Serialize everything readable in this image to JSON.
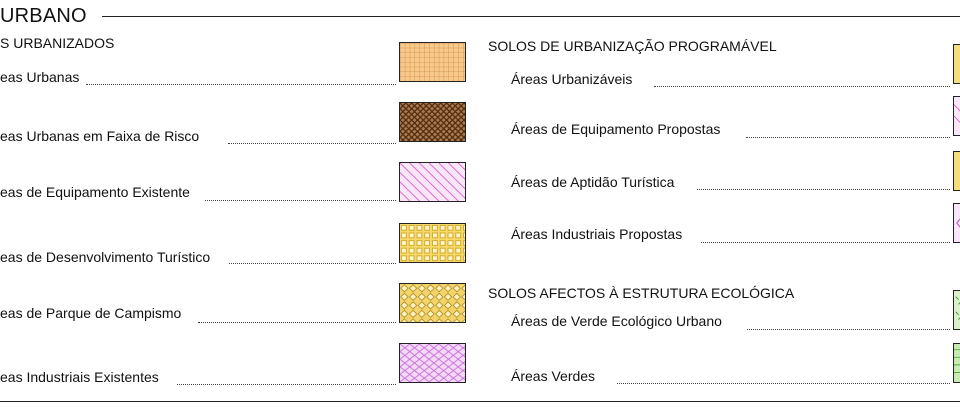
{
  "title": "URBANO",
  "left_column": {
    "section_title": "S URBANIZADOS",
    "items": [
      {
        "label": "eas Urbanas",
        "pattern": "orange-grid"
      },
      {
        "label": "eas Urbanas em Faixa de Risco",
        "pattern": "brown-crosshatch"
      },
      {
        "label": "eas de Equipamento Existente",
        "pattern": "pink-diagonal"
      },
      {
        "label": "eas de Desenvolvimento Turístico",
        "pattern": "yellow-squares"
      },
      {
        "label": "eas de Parque de Campismo",
        "pattern": "yellow-diamonds"
      },
      {
        "label": "eas Industriais Existentes",
        "pattern": "violet-diamonds"
      }
    ]
  },
  "right_column": {
    "section1_title": "SOLOS DE URBANIZAÇÃO PROGRAMÁVEL",
    "section1_items": [
      {
        "label": "Áreas Urbanizáveis",
        "pattern": "yellow-partial"
      },
      {
        "label": "Áreas de Equipamento Propostas",
        "pattern": "pink-partial"
      },
      {
        "label": "Áreas de Aptidão Turística",
        "pattern": "yellow-partial"
      },
      {
        "label": "Áreas Industriais Propostas",
        "pattern": "violet-partial"
      }
    ],
    "section2_title": "SOLOS AFECTOS À ESTRUTURA ECOLÓGICA",
    "section2_items": [
      {
        "label": "Áreas de Verde Ecológico Urbano",
        "pattern": "green-partial"
      },
      {
        "label": "Áreas Verdes",
        "pattern": "green-partial"
      }
    ]
  },
  "colors": {
    "orange": "#f4b064",
    "brown": "#7a4a24",
    "pink": "#e07ad8",
    "yellow": "#e6c23c",
    "violet": "#c77ae0",
    "green": "#4fae3a"
  }
}
